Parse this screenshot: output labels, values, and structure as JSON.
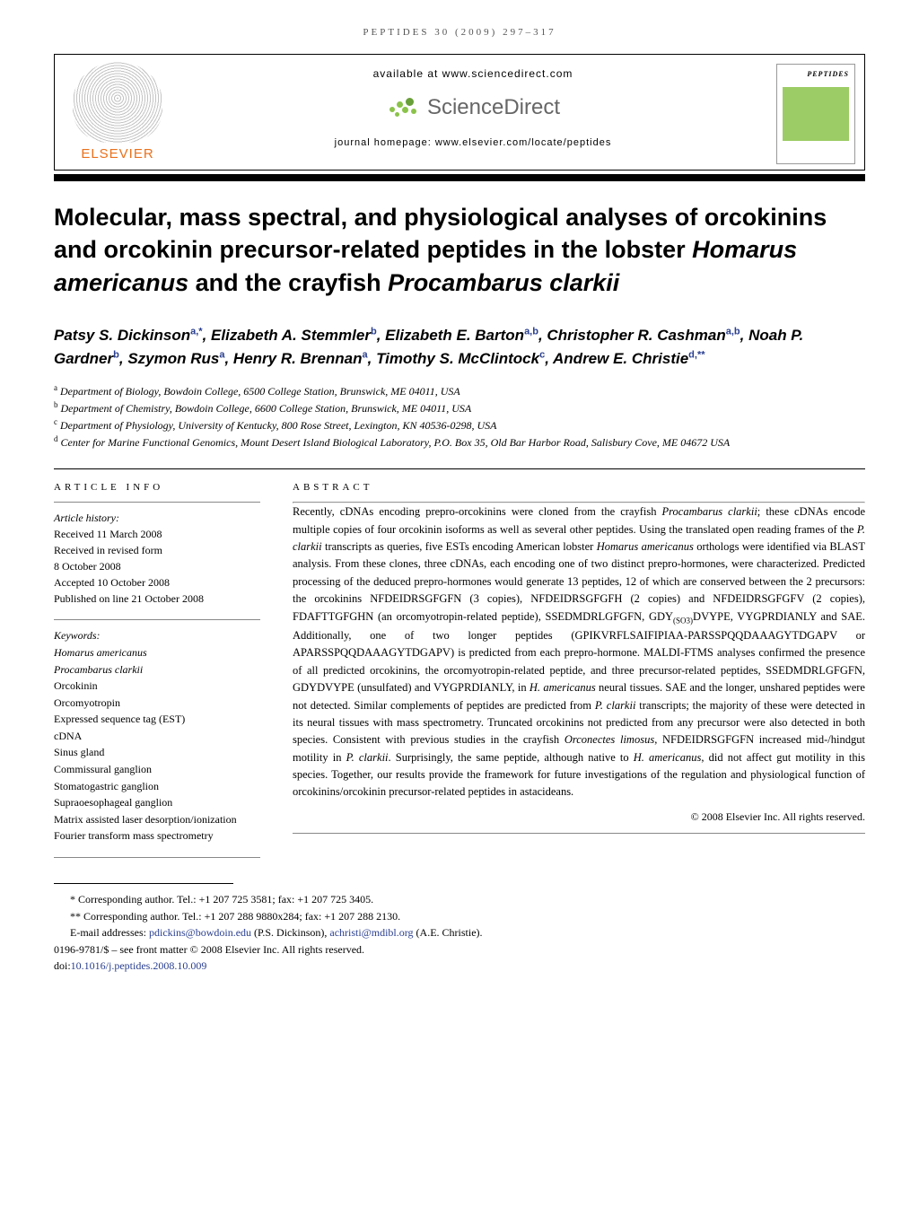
{
  "journalRef": "PEPTIDES 30 (2009) 297–317",
  "header": {
    "availableAt": "available at www.sciencedirect.com",
    "scienceDirect": "ScienceDirect",
    "homepage": "journal homepage: www.elsevier.com/locate/peptides",
    "elsevier": "ELSEVIER",
    "coverTitle": "PEPTIDES"
  },
  "title": {
    "pre1": "Molecular, mass spectral, and physiological analyses of orcokinins and orcokinin precursor-related peptides in the lobster ",
    "sp1": "Homarus americanus",
    "mid": " and the crayfish ",
    "sp2": "Procambarus clarkii"
  },
  "authors": [
    {
      "name": "Patsy S. Dickinson",
      "aff": "a,*"
    },
    {
      "name": "Elizabeth A. Stemmler",
      "aff": "b"
    },
    {
      "name": "Elizabeth E. Barton",
      "aff": "a,b"
    },
    {
      "name": "Christopher R. Cashman",
      "aff": "a,b"
    },
    {
      "name": "Noah P. Gardner",
      "aff": "b"
    },
    {
      "name": "Szymon Rus",
      "aff": "a"
    },
    {
      "name": "Henry R. Brennan",
      "aff": "a"
    },
    {
      "name": "Timothy S. McClintock",
      "aff": "c"
    },
    {
      "name": "Andrew E. Christie",
      "aff": "d,**"
    }
  ],
  "affiliations": [
    {
      "sup": "a",
      "text": "Department of Biology, Bowdoin College, 6500 College Station, Brunswick, ME 04011, USA"
    },
    {
      "sup": "b",
      "text": "Department of Chemistry, Bowdoin College, 6600 College Station, Brunswick, ME 04011, USA"
    },
    {
      "sup": "c",
      "text": "Department of Physiology, University of Kentucky, 800 Rose Street, Lexington, KN 40536-0298, USA"
    },
    {
      "sup": "d",
      "text": "Center for Marine Functional Genomics, Mount Desert Island Biological Laboratory, P.O. Box 35, Old Bar Harbor Road, Salisbury Cove, ME 04672 USA"
    }
  ],
  "articleInfo": {
    "label": "ARTICLE INFO",
    "historyLabel": "Article history:",
    "history": [
      "Received 11 March 2008",
      "Received in revised form",
      "8 October 2008",
      "Accepted 10 October 2008",
      "Published on line 21 October 2008"
    ],
    "keywordsLabel": "Keywords:",
    "keywords": [
      {
        "t": "Homarus americanus",
        "italic": true
      },
      {
        "t": "Procambarus clarkii",
        "italic": true
      },
      {
        "t": "Orcokinin"
      },
      {
        "t": "Orcomyotropin"
      },
      {
        "t": "Expressed sequence tag (EST)"
      },
      {
        "t": "cDNA"
      },
      {
        "t": "Sinus gland"
      },
      {
        "t": "Commissural ganglion"
      },
      {
        "t": "Stomatogastric ganglion"
      },
      {
        "t": "Supraoesophageal ganglion"
      },
      {
        "t": "Matrix assisted laser desorption/ionization Fourier transform mass spectrometry"
      }
    ]
  },
  "abstract": {
    "label": "ABSTRACT",
    "copyright": "© 2008 Elsevier Inc. All rights reserved."
  },
  "footer": {
    "corr1": "* Corresponding author. Tel.: +1 207 725 3581; fax: +1 207 725 3405.",
    "corr2": "** Corresponding author. Tel.: +1 207 288 9880x284; fax: +1 207 288 2130.",
    "emailLabel": "E-mail addresses: ",
    "email1": "pdickins@bowdoin.edu",
    "email1name": " (P.S. Dickinson), ",
    "email2": "achristi@mdibl.org",
    "email2name": " (A.E. Christie).",
    "frontmatter": "0196-9781/$ – see front matter © 2008 Elsevier Inc. All rights reserved.",
    "doiLabel": "doi:",
    "doi": "10.1016/j.peptides.2008.10.009"
  }
}
